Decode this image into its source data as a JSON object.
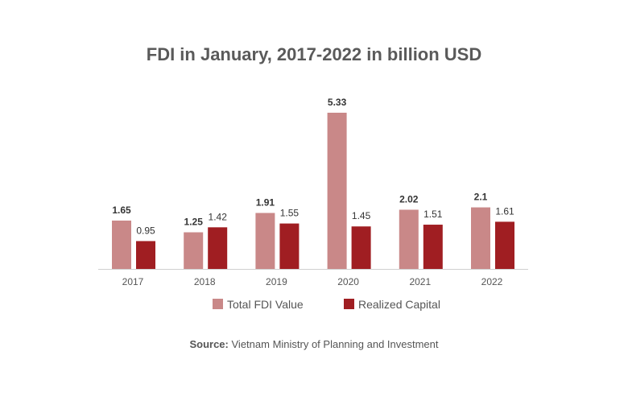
{
  "chart_data": {
    "type": "bar",
    "title": "FDI in January, 2017-2022 in billion USD",
    "categories": [
      "2017",
      "2018",
      "2019",
      "2020",
      "2021",
      "2022"
    ],
    "series": [
      {
        "name": "Total FDI Value",
        "color": "#c98888",
        "labels_bold": true,
        "values": [
          1.65,
          1.25,
          1.91,
          5.33,
          2.02,
          2.1
        ]
      },
      {
        "name": "Realized Capital",
        "color": "#a01e22",
        "labels_bold": false,
        "values": [
          0.95,
          1.42,
          1.55,
          1.45,
          1.51,
          1.61
        ]
      }
    ],
    "ylim": [
      0,
      5.33
    ],
    "grid": false,
    "legend_position": "bottom",
    "source_label": "Source:",
    "source_text": "Vietnam Ministry of Planning and Investment"
  }
}
